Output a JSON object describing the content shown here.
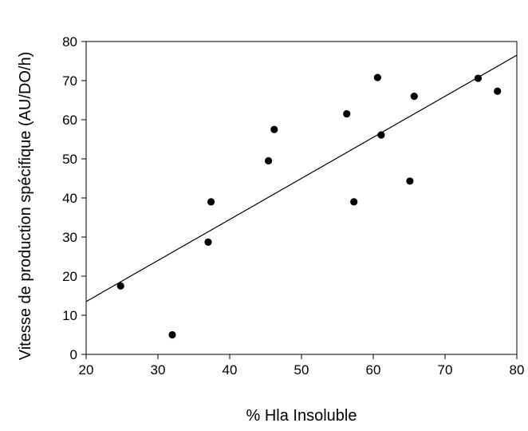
{
  "chart_data": {
    "type": "scatter",
    "title": "",
    "xlabel": "% Hla Insoluble",
    "ylabel": "Vitesse de production spécifique (AU/DO/h)",
    "xlim": [
      20,
      80
    ],
    "ylim": [
      0,
      80
    ],
    "xticks": [
      20,
      30,
      40,
      50,
      60,
      70,
      80
    ],
    "yticks": [
      0,
      10,
      20,
      30,
      40,
      50,
      60,
      70,
      80
    ],
    "grid": false,
    "legend": "none",
    "series": [
      {
        "points": [
          {
            "x": 24.8,
            "y": 17.5
          },
          {
            "x": 32.0,
            "y": 5.0
          },
          {
            "x": 37.0,
            "y": 28.7
          },
          {
            "x": 37.4,
            "y": 39.0
          },
          {
            "x": 45.4,
            "y": 49.5
          },
          {
            "x": 46.2,
            "y": 57.5
          },
          {
            "x": 56.3,
            "y": 61.5
          },
          {
            "x": 57.3,
            "y": 39.0
          },
          {
            "x": 60.6,
            "y": 70.8
          },
          {
            "x": 61.1,
            "y": 56.1
          },
          {
            "x": 65.1,
            "y": 44.3
          },
          {
            "x": 65.7,
            "y": 66.0
          },
          {
            "x": 74.6,
            "y": 70.6
          },
          {
            "x": 77.3,
            "y": 67.3
          }
        ]
      }
    ],
    "trendline": {
      "x": [
        20,
        80
      ],
      "y": [
        13.5,
        76.5
      ]
    },
    "colors": {
      "marker": "#000000",
      "line": "#000000",
      "axis": "#000000"
    }
  }
}
